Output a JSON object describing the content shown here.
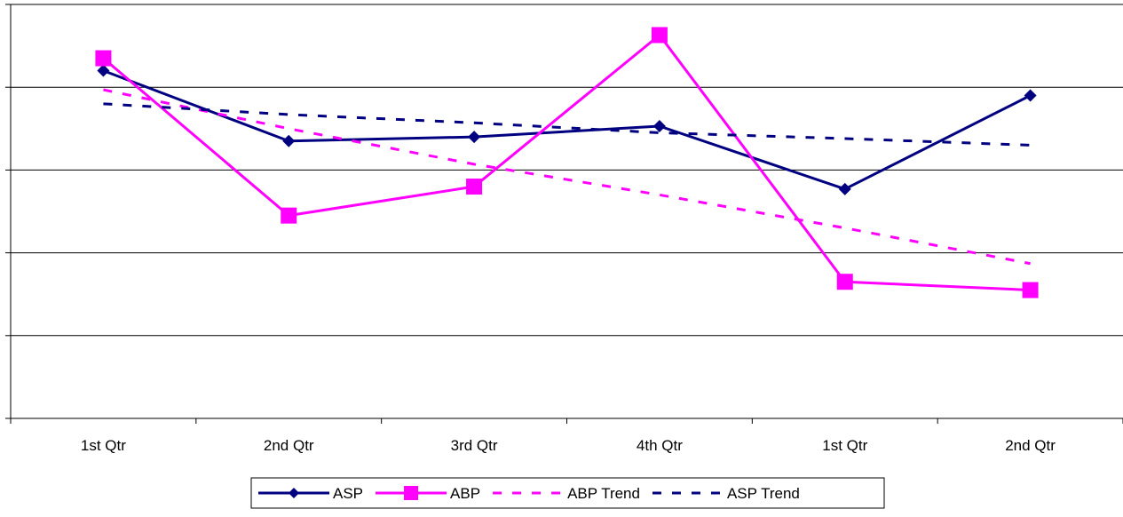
{
  "chart_data": {
    "type": "line",
    "categories": [
      "1st Qtr",
      "2nd Qtr",
      "3rd Qtr",
      "4th Qtr",
      "1st Qtr",
      "2nd Qtr"
    ],
    "ylim": [
      0,
      5
    ],
    "yticks": [
      0,
      1,
      2,
      3,
      4,
      5
    ],
    "grid": true,
    "legend_position": "bottom",
    "series": [
      {
        "name": "ASP",
        "values": [
          4.2,
          3.35,
          3.4,
          3.53,
          2.77,
          3.9
        ],
        "color": "#000080",
        "style": "solid",
        "marker": "diamond"
      },
      {
        "name": "ABP",
        "values": [
          4.35,
          2.45,
          2.8,
          4.63,
          1.65,
          1.55
        ],
        "color": "#FF00FF",
        "style": "solid",
        "marker": "square"
      },
      {
        "name": "ABP Trend",
        "values": [
          3.97,
          3.5,
          3.07,
          2.7,
          2.3,
          1.87
        ],
        "color": "#FF00FF",
        "style": "dashed",
        "marker": "none"
      },
      {
        "name": "ASP Trend",
        "values": [
          3.8,
          3.67,
          3.57,
          3.45,
          3.38,
          3.3
        ],
        "color": "#000080",
        "style": "dashed",
        "marker": "none"
      }
    ]
  }
}
